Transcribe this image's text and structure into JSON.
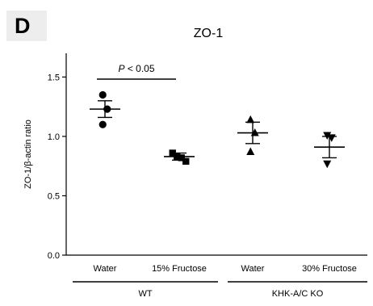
{
  "panel_label": "D",
  "chart_data": {
    "type": "scatter",
    "title": "ZO-1",
    "ylabel": "ZO-1/β-actin ratio",
    "xlabel": "",
    "ylim": [
      0.0,
      1.7
    ],
    "yticks": [
      {
        "value": 0.0,
        "label": "0.0"
      },
      {
        "value": 0.5,
        "label": "0.5"
      },
      {
        "value": 1.0,
        "label": "1.0"
      },
      {
        "value": 1.5,
        "label": "1.5"
      }
    ],
    "grid": false,
    "groups": [
      {
        "label": "Water",
        "marker": "circle",
        "points": [
          1.35,
          1.23,
          1.1
        ],
        "mean": 1.23,
        "sem": 0.07
      },
      {
        "label": "15% Fructose",
        "marker": "square",
        "points": [
          0.86,
          0.83,
          0.82,
          0.79
        ],
        "mean": 0.83,
        "sem": 0.03
      },
      {
        "label": "Water",
        "marker": "triangle-up",
        "points": [
          1.14,
          1.03,
          0.87
        ],
        "mean": 1.03,
        "sem": 0.09
      },
      {
        "label": "30% Fructose",
        "marker": "triangle-down",
        "points": [
          1.01,
          0.99,
          0.77
        ],
        "mean": 0.91,
        "sem": 0.09
      }
    ],
    "genotype_labels": [
      {
        "label": "WT",
        "groups": [
          0,
          1
        ]
      },
      {
        "label": "KHK-A/C KO",
        "groups": [
          2,
          3
        ]
      }
    ],
    "annotations": [
      {
        "text_italic": "P",
        "text": " < 0.05",
        "between_groups": [
          0,
          1
        ]
      }
    ],
    "marker_color": "#000000"
  }
}
